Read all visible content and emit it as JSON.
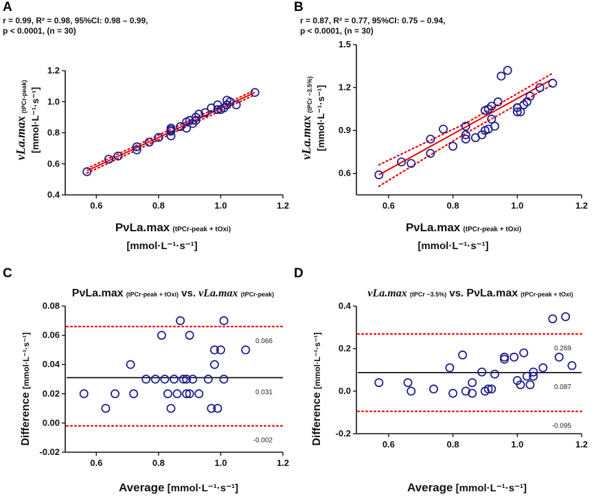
{
  "chart_data": [
    {
      "panel": "A",
      "type": "scatter",
      "stats_line1": "r = 0.99, R² = 0.98, 95%CI:  0.98 – 0.99,",
      "stats_line2": "p < 0.0001, (n = 30)",
      "ylabel_main": "νLa.max",
      "ylabel_sub": "(tPCr-peak)",
      "ylabel_units": "[mmol·L⁻¹·s⁻¹]",
      "xlabel_main": "PνLa.max",
      "xlabel_sub": "(tPCr-peak + tOxi)",
      "xlabel_units": "[mmol·L⁻¹·s⁻¹]",
      "xlim": [
        0.5,
        1.2
      ],
      "ylim": [
        0.4,
        1.2
      ],
      "xticks": [
        "0.6",
        "0.8",
        "1.0",
        "1.2"
      ],
      "yticks": [
        "0.4",
        "0.6",
        "0.8",
        "1.0",
        "1.2"
      ],
      "fit": [
        [
          0.57,
          0.555
        ],
        [
          1.11,
          1.06
        ]
      ],
      "ci_upper": [
        [
          0.57,
          0.57
        ],
        [
          1.11,
          1.075
        ]
      ],
      "ci_lower": [
        [
          0.57,
          0.54
        ],
        [
          1.11,
          1.045
        ]
      ],
      "points": [
        [
          0.57,
          0.55
        ],
        [
          0.64,
          0.63
        ],
        [
          0.67,
          0.65
        ],
        [
          0.73,
          0.69
        ],
        [
          0.73,
          0.71
        ],
        [
          0.77,
          0.74
        ],
        [
          0.8,
          0.77
        ],
        [
          0.84,
          0.78
        ],
        [
          0.84,
          0.81
        ],
        [
          0.84,
          0.82
        ],
        [
          0.84,
          0.83
        ],
        [
          0.87,
          0.84
        ],
        [
          0.89,
          0.83
        ],
        [
          0.89,
          0.87
        ],
        [
          0.9,
          0.88
        ],
        [
          0.91,
          0.86
        ],
        [
          0.92,
          0.88
        ],
        [
          0.92,
          0.9
        ],
        [
          0.93,
          0.92
        ],
        [
          0.95,
          0.93
        ],
        [
          0.97,
          0.96
        ],
        [
          0.99,
          0.95
        ],
        [
          0.99,
          0.98
        ],
        [
          1.0,
          0.95
        ],
        [
          1.01,
          0.96
        ],
        [
          1.02,
          0.98
        ],
        [
          1.02,
          1.01
        ],
        [
          1.03,
          1.0
        ],
        [
          1.05,
          0.98
        ],
        [
          1.11,
          1.06
        ]
      ]
    },
    {
      "panel": "B",
      "type": "scatter",
      "stats_line1": "r = 0.87, R² = 0.77, 95%CI:  0.75 – 0.94,",
      "stats_line2": "p < 0.0001, (n = 30)",
      "ylabel_main": "νLa.max",
      "ylabel_sub": "(tPCr −3.5%)",
      "ylabel_units": "[mmol·L⁻¹·s⁻¹]",
      "xlabel_main": "PνLa.max",
      "xlabel_sub": "(tPCr-peak + tOxi)",
      "xlabel_units": "[mmol·L⁻¹·s⁻¹]",
      "xlim": [
        0.5,
        1.2
      ],
      "ylim": [
        0.45,
        1.5
      ],
      "xticks": [
        "0.6",
        "0.8",
        "1.0",
        "1.2"
      ],
      "yticks": [
        "0.6",
        "0.9",
        "1.2",
        "1.5"
      ],
      "ytick_values": [
        0.6,
        0.9,
        1.2,
        1.5
      ],
      "fit": [
        [
          0.57,
          0.59
        ],
        [
          1.11,
          1.26
        ]
      ],
      "ci_upper": [
        [
          0.57,
          0.66
        ],
        [
          0.84,
          0.95
        ],
        [
          1.11,
          1.3
        ]
      ],
      "ci_lower": [
        [
          0.57,
          0.51
        ],
        [
          0.84,
          0.88
        ],
        [
          1.11,
          1.22
        ]
      ],
      "points": [
        [
          0.57,
          0.59
        ],
        [
          0.64,
          0.68
        ],
        [
          0.67,
          0.67
        ],
        [
          0.73,
          0.74
        ],
        [
          0.73,
          0.84
        ],
        [
          0.77,
          0.91
        ],
        [
          0.8,
          0.79
        ],
        [
          0.84,
          0.84
        ],
        [
          0.84,
          0.87
        ],
        [
          0.84,
          0.93
        ],
        [
          0.87,
          0.85
        ],
        [
          0.89,
          0.87
        ],
        [
          0.9,
          0.9
        ],
        [
          0.9,
          1.04
        ],
        [
          0.91,
          0.91
        ],
        [
          0.91,
          1.05
        ],
        [
          0.92,
          0.98
        ],
        [
          0.92,
          1.07
        ],
        [
          0.93,
          0.93
        ],
        [
          0.94,
          1.1
        ],
        [
          0.95,
          1.28
        ],
        [
          0.97,
          1.32
        ],
        [
          1.0,
          1.03
        ],
        [
          1.0,
          1.06
        ],
        [
          1.01,
          1.03
        ],
        [
          1.02,
          1.08
        ],
        [
          1.03,
          1.1
        ],
        [
          1.04,
          1.14
        ],
        [
          1.07,
          1.2
        ],
        [
          1.11,
          1.23
        ]
      ]
    },
    {
      "panel": "C",
      "type": "scatter",
      "title_a_main": "PνLa.max",
      "title_a_sub": "(tPCr-peak + tOxi)",
      "title_vs": "vs.",
      "title_b_main": "νLa.max",
      "title_b_sub": "(tPCr-peak)",
      "ylabel": "Difference",
      "ylabel_units": "[mmol·L⁻¹·s⁻¹]",
      "xlabel": "Average",
      "xlabel_units": "[mmol·L⁻¹·s⁻¹]",
      "xlim": [
        0.5,
        1.2
      ],
      "ylim": [
        -0.02,
        0.08
      ],
      "xticks": [
        "0.6",
        "0.8",
        "1.0",
        "1.2"
      ],
      "yticks": [
        "-0.02",
        "0.00",
        "0.02",
        "0.04",
        "0.06",
        "0.08"
      ],
      "mean_bias": 0.031,
      "upper_loa": 0.066,
      "lower_loa": -0.002,
      "mean_label": "0.031",
      "upper_label": "0.066",
      "lower_label": "-0.002",
      "points": [
        [
          0.56,
          0.02
        ],
        [
          0.63,
          0.01
        ],
        [
          0.66,
          0.02
        ],
        [
          0.71,
          0.04
        ],
        [
          0.72,
          0.02
        ],
        [
          0.76,
          0.03
        ],
        [
          0.79,
          0.03
        ],
        [
          0.81,
          0.06
        ],
        [
          0.82,
          0.03
        ],
        [
          0.83,
          0.02
        ],
        [
          0.84,
          0.01
        ],
        [
          0.85,
          0.03
        ],
        [
          0.86,
          0.02
        ],
        [
          0.87,
          0.07
        ],
        [
          0.88,
          0.03
        ],
        [
          0.89,
          0.02
        ],
        [
          0.89,
          0.03
        ],
        [
          0.9,
          0.06
        ],
        [
          0.9,
          0.02
        ],
        [
          0.91,
          0.03
        ],
        [
          0.93,
          0.02
        ],
        [
          0.96,
          0.03
        ],
        [
          0.97,
          0.01
        ],
        [
          0.98,
          0.05
        ],
        [
          0.98,
          0.04
        ],
        [
          0.99,
          0.01
        ],
        [
          1.0,
          0.05
        ],
        [
          1.01,
          0.07
        ],
        [
          1.01,
          0.03
        ],
        [
          1.08,
          0.05
        ]
      ]
    },
    {
      "panel": "D",
      "type": "scatter",
      "title_a_main": "νLa.max",
      "title_a_sub": "(tPCr −3.5%)",
      "title_vs": "vs.",
      "title_b_main": "PνLa.max",
      "title_b_sub": "(tPCr-peak + tOxi)",
      "ylabel": "Difference",
      "ylabel_units": "[mmol·L⁻¹·s⁻¹]",
      "xlabel": "Average",
      "xlabel_units": "[mmol·L⁻¹·s⁻¹]",
      "xlim": [
        0.5,
        1.2
      ],
      "ylim": [
        -0.2,
        0.4
      ],
      "xticks": [
        "0.6",
        "0.8",
        "1.0",
        "1.2"
      ],
      "yticks": [
        "-0.2",
        "0.0",
        "0.2",
        "0.4"
      ],
      "ytick_values": [
        -0.2,
        0.0,
        0.2,
        0.4
      ],
      "mean_bias": 0.087,
      "upper_loa": 0.269,
      "lower_loa": -0.095,
      "mean_label": "0.087",
      "upper_label": "0.269",
      "lower_label": "-0.095",
      "points": [
        [
          0.57,
          0.04
        ],
        [
          0.66,
          0.04
        ],
        [
          0.67,
          0.0
        ],
        [
          0.74,
          0.01
        ],
        [
          0.79,
          0.11
        ],
        [
          0.8,
          -0.01
        ],
        [
          0.83,
          0.17
        ],
        [
          0.84,
          0.0
        ],
        [
          0.86,
          0.04
        ],
        [
          0.86,
          -0.01
        ],
        [
          0.89,
          0.09
        ],
        [
          0.9,
          0.0
        ],
        [
          0.91,
          0.01
        ],
        [
          0.92,
          0.01
        ],
        [
          0.93,
          0.08
        ],
        [
          0.96,
          0.16
        ],
        [
          0.96,
          0.15
        ],
        [
          0.99,
          0.16
        ],
        [
          1.0,
          0.05
        ],
        [
          1.01,
          0.03
        ],
        [
          1.02,
          0.18
        ],
        [
          1.03,
          0.07
        ],
        [
          1.05,
          0.09
        ],
        [
          1.05,
          0.07
        ],
        [
          1.08,
          0.11
        ],
        [
          1.11,
          0.34
        ],
        [
          1.13,
          0.16
        ],
        [
          1.15,
          0.35
        ],
        [
          1.17,
          0.12
        ],
        [
          1.04,
          0.03
        ]
      ]
    }
  ]
}
